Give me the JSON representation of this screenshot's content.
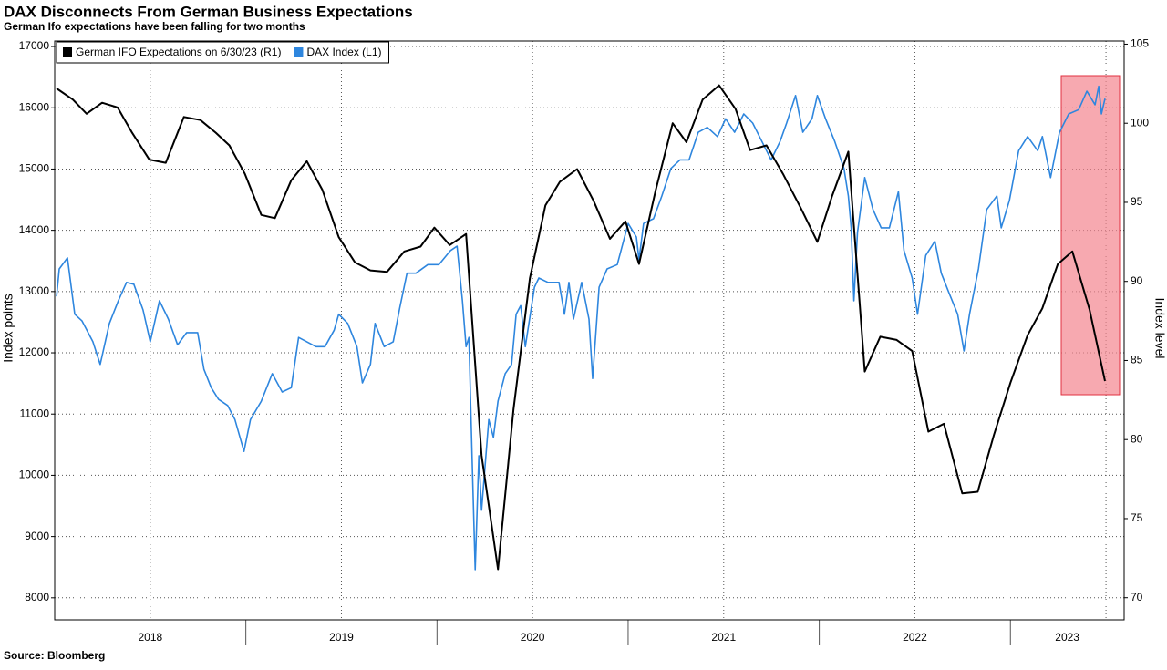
{
  "chart_data": {
    "type": "line",
    "title": "DAX Disconnects From German Business Expectations",
    "subtitle": "German Ifo expectations have been falling for two months",
    "source": "Source: Bloomberg",
    "ylabel": "Index points",
    "y2label": "Index level",
    "xlim": [
      2018.0,
      2023.595
    ],
    "xticks": [
      {
        "value": 2018.5,
        "label": "2018"
      },
      {
        "value": 2019.5,
        "label": "2019"
      },
      {
        "value": 2020.5,
        "label": "2020"
      },
      {
        "value": 2021.5,
        "label": "2021"
      },
      {
        "value": 2022.5,
        "label": "2022"
      },
      {
        "value": 2023.5,
        "label": "2023"
      }
    ],
    "ylim": [
      7640,
      17090
    ],
    "yticks": [
      8000,
      9000,
      10000,
      11000,
      12000,
      13000,
      14000,
      15000,
      16000,
      17000
    ],
    "y2lim": [
      68.6,
      105.2
    ],
    "y2ticks": [
      70,
      75,
      80,
      85,
      90,
      95,
      100,
      105
    ],
    "grid": true,
    "legend": "top-left",
    "series": [
      {
        "name": "German IFO Expectations on 6/30/23 (R1)",
        "color": "#000000",
        "axis": "y2",
        "x": [
          2018.01,
          2018.095,
          2018.167,
          2018.248,
          2018.329,
          2018.405,
          2018.495,
          2018.581,
          2018.676,
          2018.762,
          2018.843,
          2018.914,
          2018.995,
          2019.081,
          2019.152,
          2019.238,
          2019.319,
          2019.4,
          2019.486,
          2019.571,
          2019.652,
          2019.738,
          2019.829,
          2019.914,
          2019.986,
          2020.067,
          2020.152,
          2020.233,
          2020.319,
          2020.4,
          2020.486,
          2020.567,
          2020.643,
          2020.733,
          2020.819,
          2020.905,
          2020.986,
          2021.057,
          2021.143,
          2021.233,
          2021.305,
          2021.39,
          2021.476,
          2021.562,
          2021.638,
          2021.724,
          2021.81,
          2021.905,
          2021.99,
          2022.067,
          2022.152,
          2022.238,
          2022.319,
          2022.405,
          2022.486,
          2022.571,
          2022.652,
          2022.748,
          2022.829,
          2022.914,
          2023.0,
          2023.09,
          2023.167,
          2023.248,
          2023.324,
          2023.414,
          2023.495
        ],
        "values": [
          102.2,
          101.5,
          100.6,
          101.3,
          101.0,
          99.4,
          97.7,
          97.5,
          100.4,
          100.2,
          99.4,
          98.6,
          96.8,
          94.2,
          94.0,
          96.4,
          97.6,
          95.8,
          92.8,
          91.2,
          90.7,
          90.6,
          91.9,
          92.2,
          93.4,
          92.3,
          93.0,
          79.0,
          71.8,
          81.9,
          90.2,
          94.8,
          96.3,
          97.1,
          95.1,
          92.7,
          93.8,
          91.1,
          95.7,
          100.0,
          98.8,
          101.5,
          102.4,
          100.9,
          98.3,
          98.6,
          96.8,
          94.6,
          92.5,
          95.4,
          98.2,
          84.3,
          86.5,
          86.3,
          85.6,
          80.5,
          81.0,
          76.6,
          76.7,
          80.3,
          83.6,
          86.6,
          88.3,
          91.1,
          91.9,
          88.2,
          83.7
        ]
      },
      {
        "name": "DAX Index  (L1)",
        "color": "#2e86de",
        "axis": "y",
        "x": [
          2018.01,
          2018.024,
          2018.067,
          2018.105,
          2018.143,
          2018.2,
          2018.238,
          2018.286,
          2018.333,
          2018.376,
          2018.414,
          2018.462,
          2018.5,
          2018.548,
          2018.595,
          2018.643,
          2018.69,
          2018.748,
          2018.781,
          2018.819,
          2018.857,
          2018.905,
          2018.943,
          2018.99,
          2019.024,
          2019.081,
          2019.138,
          2019.19,
          2019.238,
          2019.276,
          2019.319,
          2019.367,
          2019.414,
          2019.462,
          2019.486,
          2019.533,
          2019.581,
          2019.61,
          2019.652,
          2019.676,
          2019.724,
          2019.771,
          2019.805,
          2019.843,
          2019.89,
          2019.952,
          2020.01,
          2020.071,
          2020.105,
          2020.133,
          2020.152,
          2020.167,
          2020.186,
          2020.2,
          2020.219,
          2020.233,
          2020.271,
          2020.295,
          2020.319,
          2020.357,
          2020.39,
          2020.414,
          2020.438,
          2020.462,
          2020.51,
          2020.533,
          2020.581,
          2020.638,
          2020.667,
          2020.69,
          2020.714,
          2020.757,
          2020.795,
          2020.814,
          2020.848,
          2020.89,
          2020.943,
          2021.0,
          2021.043,
          2021.057,
          2021.081,
          2021.133,
          2021.176,
          2021.224,
          2021.271,
          2021.319,
          2021.367,
          2021.414,
          2021.467,
          2021.51,
          2021.557,
          2021.605,
          2021.652,
          2021.7,
          2021.748,
          2021.795,
          2021.829,
          2021.876,
          2021.914,
          2021.962,
          2021.99,
          2022.033,
          2022.081,
          2022.129,
          2022.152,
          2022.167,
          2022.181,
          2022.2,
          2022.238,
          2022.281,
          2022.324,
          2022.367,
          2022.414,
          2022.443,
          2022.486,
          2022.514,
          2022.557,
          2022.605,
          2022.638,
          2022.676,
          2022.724,
          2022.757,
          2022.786,
          2022.833,
          2022.876,
          2022.929,
          2022.952,
          2022.995,
          2023.043,
          2023.09,
          2023.143,
          2023.167,
          2023.21,
          2023.257,
          2023.305,
          2023.357,
          2023.4,
          2023.443,
          2023.462,
          2023.476,
          2023.495
        ],
        "values": [
          12920,
          13370,
          13550,
          12630,
          12520,
          12180,
          11810,
          12480,
          12850,
          13150,
          13120,
          12700,
          12180,
          12850,
          12550,
          12130,
          12330,
          12330,
          11730,
          11430,
          11240,
          11140,
          10910,
          10390,
          10910,
          11210,
          11660,
          11360,
          11430,
          12250,
          12180,
          12100,
          12100,
          12370,
          12630,
          12480,
          12100,
          11510,
          11810,
          12480,
          12100,
          12180,
          12730,
          13300,
          13300,
          13440,
          13440,
          13670,
          13740,
          12850,
          12100,
          12250,
          10020,
          8460,
          10320,
          9430,
          10910,
          10620,
          11210,
          11660,
          11810,
          12630,
          12770,
          12100,
          13070,
          13220,
          13150,
          13150,
          12630,
          13150,
          12550,
          13150,
          12550,
          11580,
          13070,
          13370,
          13440,
          14110,
          13890,
          13520,
          14110,
          14190,
          14560,
          15010,
          15150,
          15150,
          15600,
          15680,
          15530,
          15820,
          15600,
          15900,
          15750,
          15450,
          15150,
          15450,
          15750,
          16200,
          15600,
          15820,
          16200,
          15820,
          15450,
          15010,
          14560,
          14040,
          12850,
          13960,
          14860,
          14340,
          14040,
          14040,
          14630,
          13670,
          13220,
          12630,
          13590,
          13820,
          13300,
          13000,
          12630,
          12030,
          12630,
          13370,
          14340,
          14560,
          14040,
          14490,
          15300,
          15530,
          15300,
          15530,
          14860,
          15600,
          15900,
          15970,
          16270,
          16050,
          16350,
          15900,
          16150
        ]
      }
    ]
  }
}
